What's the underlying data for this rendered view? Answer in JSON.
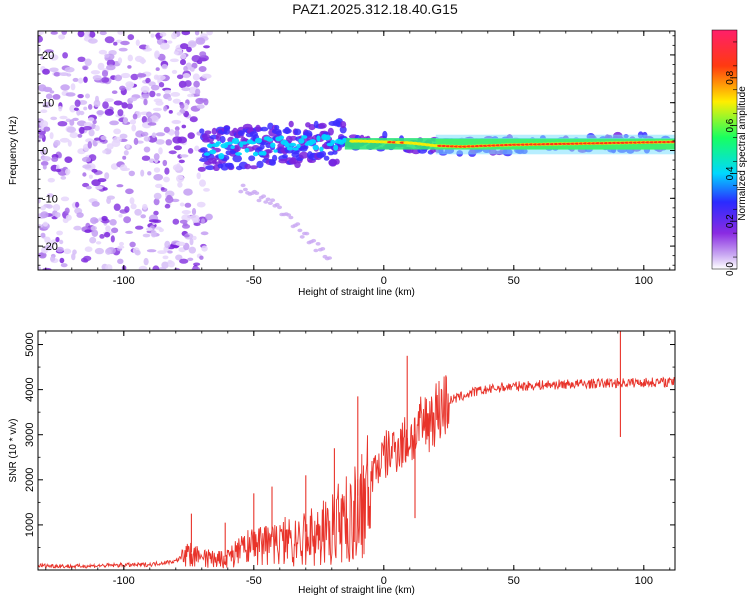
{
  "title": "PAZ1.2025.312.18.40.G15",
  "colors": {
    "snr_line": "#e8332a",
    "colorbar_stops": [
      "#8a2be2",
      "#3b2bff",
      "#00d8ff",
      "#18ff60",
      "#ffee00",
      "#ff3a10",
      "#ff1f6a"
    ]
  },
  "chart_data": [
    {
      "type": "heatmap",
      "xlabel": "Height of straight line (km)",
      "ylabel": "Frequency (Hz)",
      "xlim": [
        -133,
        112
      ],
      "ylim": [
        -25,
        25
      ],
      "xticks": [
        -100,
        -50,
        0,
        50,
        100
      ],
      "xtick_labels": [
        "-100",
        "-50",
        "0",
        "50",
        "100"
      ],
      "yticks": [
        -20,
        -10,
        0,
        10,
        20
      ],
      "ytick_labels": [
        "-20",
        "-10",
        "0",
        "10",
        "20"
      ],
      "colorbar": {
        "label": "Normalized spectral amplitude",
        "range": [
          0,
          1
        ],
        "ticks": [
          0.0,
          0.2,
          0.4,
          0.6,
          0.8
        ],
        "tick_labels": [
          "0.0",
          "0.2",
          "0.4",
          "0.6",
          "0.8"
        ]
      },
      "features": {
        "noise_region_x": [
          -133,
          -70
        ],
        "signal_onset_x": -70,
        "ridge_frequency_x": [
          -70,
          -60,
          -50,
          -40,
          -30,
          -20,
          -10,
          0,
          10,
          20,
          30,
          50,
          80,
          112
        ],
        "ridge_frequency_hz": [
          0.0,
          0.5,
          0.8,
          1.2,
          1.5,
          1.8,
          2.0,
          1.8,
          1.6,
          1.0,
          0.8,
          1.2,
          1.5,
          1.8
        ],
        "secondary_trace_x": [
          -55,
          -40,
          -30,
          -20
        ],
        "secondary_trace_hz": [
          -8,
          -12,
          -18,
          -23
        ]
      }
    },
    {
      "type": "line",
      "xlabel": "Height of straight line (km)",
      "ylabel": "SNR (10 * v/v)",
      "xlim": [
        -133,
        112
      ],
      "ylim": [
        0,
        5300
      ],
      "xticks": [
        -100,
        -50,
        0,
        50,
        100
      ],
      "xtick_labels": [
        "-100",
        "-50",
        "0",
        "50",
        "100"
      ],
      "yticks": [
        1000,
        2000,
        3000,
        4000,
        5000
      ],
      "ytick_labels": [
        "1000",
        "2000",
        "3000",
        "4000",
        "5000"
      ],
      "series": [
        {
          "name": "SNR",
          "x": [
            -133,
            -120,
            -100,
            -90,
            -80,
            -75,
            -70,
            -65,
            -60,
            -55,
            -50,
            -45,
            -40,
            -35,
            -30,
            -25,
            -20,
            -15,
            -10,
            -5,
            0,
            5,
            10,
            15,
            20,
            25,
            30,
            35,
            40,
            45,
            50,
            60,
            70,
            80,
            90,
            100,
            112
          ],
          "values": [
            100,
            80,
            110,
            120,
            200,
            400,
            350,
            280,
            300,
            500,
            650,
            700,
            780,
            750,
            850,
            950,
            1150,
            1400,
            1650,
            2100,
            2500,
            2750,
            2900,
            3200,
            3500,
            3750,
            3850,
            3950,
            4000,
            4050,
            4070,
            4100,
            4120,
            4130,
            4150,
            4160,
            4170
          ]
        }
      ],
      "spikes": [
        {
          "x": -74,
          "value": 1250
        },
        {
          "x": -61,
          "value": 1050
        },
        {
          "x": -50,
          "value": 1700
        },
        {
          "x": -43,
          "value": 1850
        },
        {
          "x": -30,
          "value": 2100
        },
        {
          "x": -19,
          "value": 2700
        },
        {
          "x": -10,
          "value": 3850
        },
        {
          "x": 9,
          "value": 4750
        },
        {
          "x": 12,
          "value": 1150
        },
        {
          "x": 91,
          "value": 5300
        },
        {
          "x": 91,
          "value": 2950
        }
      ]
    }
  ]
}
